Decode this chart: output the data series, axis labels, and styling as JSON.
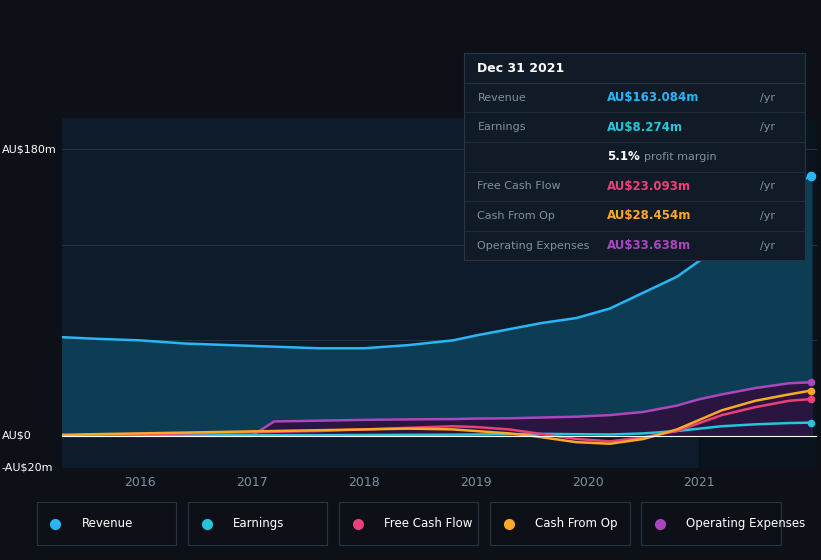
{
  "bg_color": "#0d1117",
  "plot_bg_color": "#0d1b2a",
  "grid_color": "#253545",
  "ylabel_top": "AU$180m",
  "ylabel_zero": "AU$0",
  "ylabel_neg": "-AU$20m",
  "ylim": [
    -20,
    200
  ],
  "yticks": [
    -20,
    0,
    60,
    120,
    180
  ],
  "xlim": [
    2015.3,
    2022.05
  ],
  "xticks": [
    2016,
    2017,
    2018,
    2019,
    2020,
    2021
  ],
  "series": {
    "Revenue": {
      "color": "#29b6f6",
      "fill_color": "#0d3d55",
      "x": [
        2015.3,
        2015.6,
        2016.0,
        2016.4,
        2016.8,
        2017.2,
        2017.6,
        2018.0,
        2018.4,
        2018.8,
        2019.0,
        2019.3,
        2019.6,
        2019.9,
        2020.2,
        2020.5,
        2020.8,
        2021.0,
        2021.2,
        2021.5,
        2021.8,
        2022.0
      ],
      "y": [
        62,
        61,
        60,
        58,
        57,
        56,
        55,
        55,
        57,
        60,
        63,
        67,
        71,
        74,
        80,
        90,
        100,
        110,
        120,
        140,
        158,
        163
      ]
    },
    "Earnings": {
      "color": "#26c6da",
      "x": [
        2015.3,
        2015.6,
        2016.0,
        2016.4,
        2016.8,
        2017.2,
        2017.6,
        2018.0,
        2018.4,
        2018.8,
        2019.0,
        2019.3,
        2019.6,
        2019.9,
        2020.2,
        2020.5,
        2020.8,
        2021.0,
        2021.2,
        2021.5,
        2021.8,
        2022.0
      ],
      "y": [
        0.5,
        0.5,
        0.5,
        0.5,
        0.5,
        0.4,
        0.4,
        0.5,
        0.6,
        0.7,
        0.8,
        1.0,
        1.2,
        1.0,
        0.8,
        1.5,
        3.0,
        4.5,
        6.0,
        7.2,
        8.0,
        8.274
      ]
    },
    "Free Cash Flow": {
      "color": "#ec407a",
      "x": [
        2015.3,
        2015.6,
        2016.0,
        2016.4,
        2016.8,
        2017.2,
        2017.6,
        2018.0,
        2018.4,
        2018.8,
        2019.0,
        2019.3,
        2019.5,
        2019.7,
        2019.9,
        2020.2,
        2020.5,
        2020.8,
        2021.0,
        2021.2,
        2021.5,
        2021.8,
        2022.0
      ],
      "y": [
        0.2,
        0.5,
        1.0,
        1.5,
        2.0,
        2.5,
        3.0,
        4.0,
        5.0,
        6.0,
        5.5,
        4.0,
        2.0,
        0.0,
        -2.0,
        -3.5,
        -1.0,
        3.0,
        8.0,
        13.0,
        18.0,
        22.0,
        23.093
      ]
    },
    "Cash From Op": {
      "color": "#ffa726",
      "x": [
        2015.3,
        2015.6,
        2016.0,
        2016.4,
        2016.8,
        2017.2,
        2017.6,
        2018.0,
        2018.4,
        2018.8,
        2019.0,
        2019.3,
        2019.5,
        2019.7,
        2019.9,
        2020.2,
        2020.5,
        2020.8,
        2021.0,
        2021.2,
        2021.5,
        2021.8,
        2022.0
      ],
      "y": [
        0.5,
        1.0,
        1.5,
        2.0,
        2.5,
        3.0,
        3.5,
        4.0,
        4.5,
        4.0,
        3.0,
        1.5,
        0.0,
        -2.0,
        -4.0,
        -5.0,
        -2.0,
        4.0,
        10.0,
        16.0,
        22.0,
        26.0,
        28.454
      ]
    },
    "Operating Expenses": {
      "color": "#ab47bc",
      "fill_color": "#2a1540",
      "x": [
        2015.3,
        2015.6,
        2016.0,
        2016.4,
        2016.8,
        2017.0,
        2017.2,
        2017.6,
        2018.0,
        2018.4,
        2018.8,
        2019.0,
        2019.3,
        2019.6,
        2019.9,
        2020.2,
        2020.5,
        2020.8,
        2021.0,
        2021.2,
        2021.5,
        2021.8,
        2022.0
      ],
      "y": [
        0.0,
        0.0,
        0.0,
        0.0,
        0.0,
        0.0,
        9.0,
        9.5,
        10.0,
        10.3,
        10.5,
        10.8,
        11.0,
        11.5,
        12.0,
        13.0,
        15.0,
        19.0,
        23.0,
        26.0,
        30.0,
        33.0,
        33.638
      ]
    }
  },
  "tooltip": {
    "date": "Dec 31 2021",
    "rows": [
      {
        "label": "Revenue",
        "value": "AU$163.084m",
        "color": "#29b6f6",
        "suffix": " /yr"
      },
      {
        "label": "Earnings",
        "value": "AU$8.274m",
        "color": "#26c6da",
        "suffix": " /yr"
      },
      {
        "label": "",
        "value": "5.1% profit margin",
        "color": "mixed",
        "suffix": ""
      },
      {
        "label": "Free Cash Flow",
        "value": "AU$23.093m",
        "color": "#ec407a",
        "suffix": " /yr"
      },
      {
        "label": "Cash From Op",
        "value": "AU$28.454m",
        "color": "#ffa726",
        "suffix": " /yr"
      },
      {
        "label": "Operating Expenses",
        "value": "AU$33.638m",
        "color": "#ab47bc",
        "suffix": " /yr"
      }
    ]
  },
  "legend": [
    {
      "label": "Revenue",
      "color": "#29b6f6"
    },
    {
      "label": "Earnings",
      "color": "#26c6da"
    },
    {
      "label": "Free Cash Flow",
      "color": "#ec407a"
    },
    {
      "label": "Cash From Op",
      "color": "#ffa726"
    },
    {
      "label": "Operating Expenses",
      "color": "#ab47bc"
    }
  ],
  "dark_band_x": 2021.0,
  "dot_x": 2022.0,
  "dot_y": 163
}
